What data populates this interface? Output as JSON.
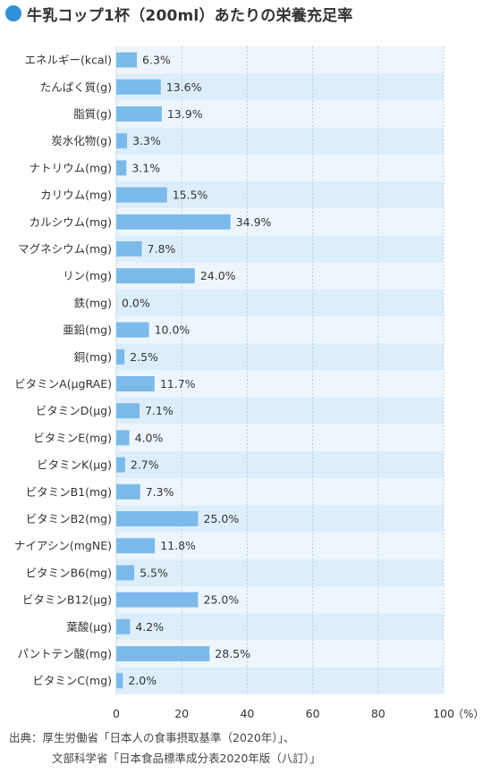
{
  "title": "牛乳コップ1杯（200ml）あたりの栄養充足率",
  "chart_data": {
    "type": "bar",
    "orientation": "horizontal",
    "categories": [
      "エネルギー(kcal)",
      "たんぱく質(g)",
      "脂質(g)",
      "炭水化物(g)",
      "ナトリウム(mg)",
      "カリウム(mg)",
      "カルシウム(mg)",
      "マグネシウム(mg)",
      "リン(mg)",
      "鉄(mg)",
      "亜鉛(mg)",
      "銅(mg)",
      "ビタミンA(μgRAE)",
      "ビタミンD(μg)",
      "ビタミンE(mg)",
      "ビタミンK(μg)",
      "ビタミンB1(mg)",
      "ビタミンB2(mg)",
      "ナイアシン(mgNE)",
      "ビタミンB6(mg)",
      "ビタミンB12(μg)",
      "葉酸(μg)",
      "パントテン酸(mg)",
      "ビタミンC(mg)"
    ],
    "values": [
      6.3,
      13.6,
      13.9,
      3.3,
      3.1,
      15.5,
      34.9,
      7.8,
      24.0,
      0.0,
      10.0,
      2.5,
      11.7,
      7.1,
      4.0,
      2.7,
      7.3,
      25.0,
      11.8,
      5.5,
      25.0,
      4.2,
      28.5,
      2.0
    ],
    "value_labels": [
      "6.3%",
      "13.6%",
      "13.9%",
      "3.3%",
      "3.1%",
      "15.5%",
      "34.9%",
      "7.8%",
      "24.0%",
      "0.0%",
      "10.0%",
      "2.5%",
      "11.7%",
      "7.1%",
      "4.0%",
      "2.7%",
      "7.3%",
      "25.0%",
      "11.8%",
      "5.5%",
      "25.0%",
      "4.2%",
      "28.5%",
      "2.0%"
    ],
    "xlim": [
      0,
      100
    ],
    "x_ticks": [
      0,
      20,
      40,
      60,
      80,
      100
    ],
    "x_unit": "（%）",
    "grid": true,
    "bar_color": "#7cbaea",
    "row_colors": [
      "#eef6fd",
      "#ddeefb"
    ]
  },
  "source": {
    "line1": "出典：厚生労働省「日本人の食事摂取基準（2020年）」、",
    "line2": "文部科学省「日本食品標準成分表2020年版（八訂）」"
  }
}
